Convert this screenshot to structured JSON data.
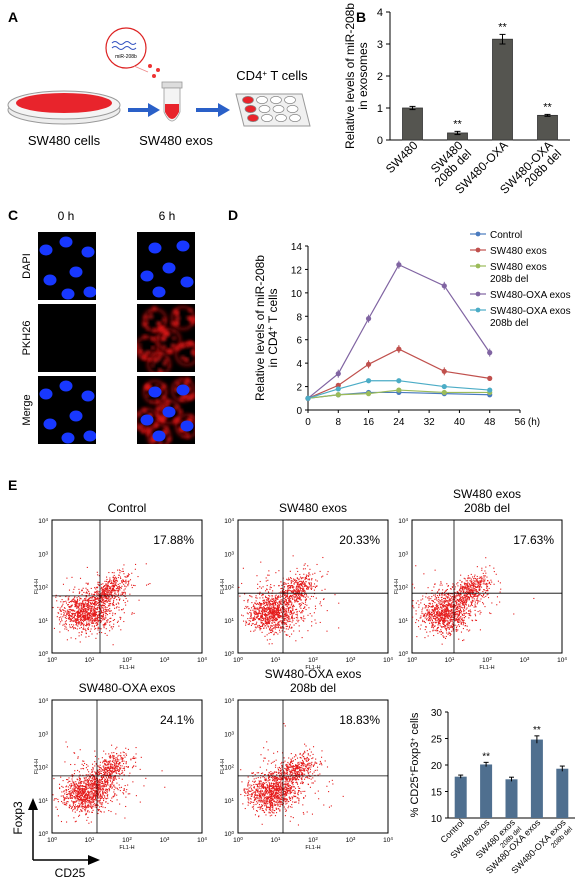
{
  "panels": {
    "A": {
      "label": "A",
      "mir_label": "miR-208b",
      "cells_label": "SW480 cells",
      "exos_label": "SW480 exos",
      "tcells_label": "CD4",
      "tcells_sup": "+",
      "tcells_suffix": " T cells"
    },
    "B": {
      "label": "B"
    },
    "C": {
      "label": "C",
      "col_labels": [
        "0 h",
        "6 h"
      ],
      "row_labels": [
        "DAPI",
        "PKH26",
        "Merge"
      ]
    },
    "D": {
      "label": "D"
    },
    "E": {
      "label": "E",
      "plots": [
        {
          "title": [
            "Control"
          ],
          "percent": "17.88%"
        },
        {
          "title": [
            "SW480 exos"
          ],
          "percent": "20.33%"
        },
        {
          "title": [
            "SW480 exos",
            "208b del"
          ],
          "percent": "17.63%"
        },
        {
          "title": [
            "SW480-OXA exos"
          ],
          "percent": "24.1%"
        },
        {
          "title": [
            "SW480-OXA exos",
            "208b del"
          ],
          "percent": "18.83%"
        }
      ],
      "flow_ylabel": "FL4-H",
      "flow_xlabel": "FL1-H",
      "flow_ticks": [
        "10",
        "10",
        "10",
        "10",
        "10"
      ],
      "flow_tick_exps": [
        "0",
        "1",
        "2",
        "3",
        "4"
      ],
      "axis_y": "Foxp3",
      "axis_x": "CD25"
    }
  },
  "chart_data": [
    {
      "id": "B",
      "type": "bar",
      "categories": [
        [
          "SW480"
        ],
        [
          "SW480",
          "208b del"
        ],
        [
          "SW480-OXA"
        ],
        [
          "SW480-OXA",
          "208b del"
        ]
      ],
      "values": [
        1.0,
        0.22,
        3.15,
        0.77
      ],
      "errors": [
        0.05,
        0.05,
        0.15,
        0.03
      ],
      "significance": [
        "",
        "**",
        "**",
        "**"
      ],
      "ylabel": [
        "Relative levels of miR-208b",
        "in exosomes"
      ],
      "ylim": [
        0,
        4
      ],
      "yticks": [
        0,
        1,
        2,
        3,
        4
      ],
      "bar_color": "#555550"
    },
    {
      "id": "D",
      "type": "line",
      "x": [
        0,
        8,
        16,
        24,
        36,
        48
      ],
      "xticks": [
        0,
        8,
        16,
        24,
        32,
        40,
        48,
        56
      ],
      "xunit": "(h)",
      "ylabel": [
        "Relative levels of miR-208b",
        "in CD4"
      ],
      "ylabel_sup": "+",
      "ylabel_suffix": " T cells",
      "ylim": [
        0,
        14
      ],
      "yticks": [
        0,
        2,
        4,
        6,
        8,
        10,
        12,
        14
      ],
      "legend_position": "top-right",
      "series": [
        {
          "name": "Control",
          "legend": [
            "Control"
          ],
          "color": "#4a7bbf",
          "values": [
            1.0,
            1.3,
            1.5,
            1.5,
            1.4,
            1.3
          ]
        },
        {
          "name": "SW480 exos",
          "legend": [
            "SW480 exos"
          ],
          "color": "#c0504d",
          "values": [
            1.0,
            2.1,
            3.9,
            5.2,
            3.3,
            2.7
          ]
        },
        {
          "name": "SW480 exos 208b del",
          "legend": [
            "SW480 exos",
            "208b del"
          ],
          "color": "#9bbb59",
          "values": [
            1.0,
            1.3,
            1.4,
            1.7,
            1.5,
            1.5
          ]
        },
        {
          "name": "SW480-OXA exos",
          "legend": [
            "SW480-OXA exos"
          ],
          "color": "#8064a2",
          "values": [
            1.0,
            3.1,
            7.8,
            12.4,
            10.6,
            4.9
          ]
        },
        {
          "name": "SW480-OXA exos 208b del",
          "legend": [
            "SW480-OXA exos",
            "208b del"
          ],
          "color": "#4bacc6",
          "values": [
            1.0,
            1.8,
            2.5,
            2.5,
            2.0,
            1.7
          ]
        }
      ]
    },
    {
      "id": "E-bar",
      "type": "bar",
      "categories": [
        [
          "Control"
        ],
        [
          "SW480 exos"
        ],
        [
          "SW480 exos",
          "208b del"
        ],
        [
          "SW480-OXA exos"
        ],
        [
          "SW480-OXA exos",
          "208b del"
        ]
      ],
      "values": [
        17.8,
        20.1,
        17.3,
        24.8,
        19.3
      ],
      "errors": [
        0.3,
        0.4,
        0.4,
        0.7,
        0.5
      ],
      "significance": [
        "",
        "**",
        "",
        "**",
        ""
      ],
      "ylabel": "% CD25",
      "ylabel_sup1": "+",
      "ylabel_mid": "Foxp3",
      "ylabel_sup2": "+",
      "ylabel_suffix": " cells",
      "ylim": [
        10,
        30
      ],
      "yticks": [
        10,
        15,
        20,
        25,
        30
      ],
      "bar_color": "#4f6f8f"
    }
  ]
}
